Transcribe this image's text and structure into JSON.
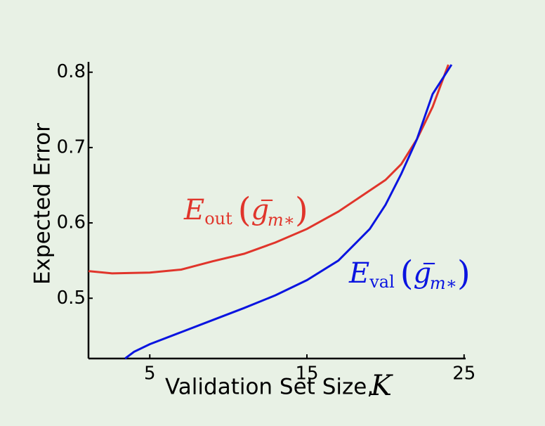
{
  "chart_data": {
    "type": "line",
    "xlabel": "Validation Set Size,",
    "xlabel_symbol": "K",
    "ylabel": "Expected Error",
    "xlim": [
      1.1,
      25.1
    ],
    "ylim": [
      0.42,
      0.81
    ],
    "xticks": [
      5,
      15,
      25
    ],
    "yticks": [
      0.5,
      0.6,
      0.7,
      0.8
    ],
    "series": [
      {
        "name": "E_out",
        "color": "#e0352b",
        "x": [
          1.1,
          2.6,
          5,
          7,
          9,
          11,
          13,
          15,
          17,
          19,
          20,
          21,
          22,
          23,
          24
        ],
        "values": [
          0.536,
          0.533,
          0.534,
          0.538,
          0.549,
          0.559,
          0.574,
          0.592,
          0.615,
          0.643,
          0.657,
          0.678,
          0.711,
          0.754,
          0.81
        ]
      },
      {
        "name": "E_val",
        "color": "#0a14e0",
        "x": [
          3.43,
          4,
          5,
          7,
          9,
          11,
          13,
          15,
          17,
          19,
          20,
          21,
          22,
          23,
          24.2
        ],
        "values": [
          0.42,
          0.429,
          0.439,
          0.455,
          0.471,
          0.487,
          0.504,
          0.524,
          0.55,
          0.592,
          0.624,
          0.665,
          0.711,
          0.771,
          0.81
        ]
      }
    ],
    "annotations": [
      {
        "symbol": "E",
        "subscript": "out",
        "open": "(",
        "argument": "g",
        "superscript": "−",
        "argument_subscript": "m∗",
        "close": ")",
        "color": "#e0352b"
      },
      {
        "symbol": "E",
        "subscript": "val",
        "open": "(",
        "argument": "g",
        "superscript": "−",
        "argument_subscript": "m∗",
        "close": ")",
        "color": "#0a14e0"
      }
    ]
  }
}
